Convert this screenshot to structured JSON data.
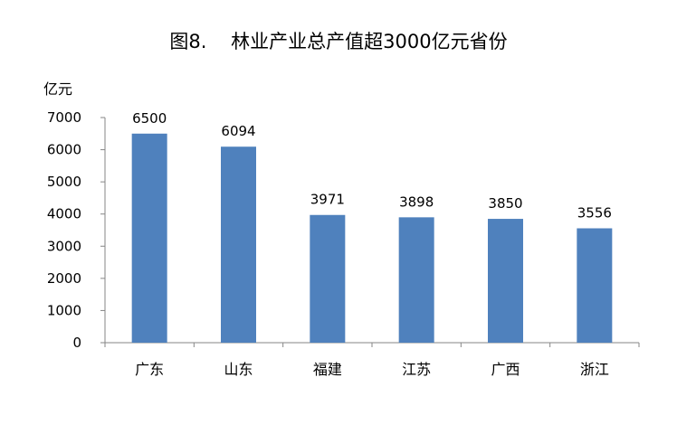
{
  "chart_data": {
    "type": "bar",
    "title": "图8.    林业产业总产值超3000亿元省份",
    "ylabel": "亿元",
    "xlabel": "",
    "categories": [
      "广东",
      "山东",
      "福建",
      "江苏",
      "广西",
      "浙江"
    ],
    "values": [
      6500,
      6094,
      3971,
      3898,
      3850,
      3556
    ],
    "data_labels": [
      "6500",
      "6094",
      "3971",
      "3898",
      "3850",
      "3556"
    ],
    "ylim": [
      0,
      7000
    ],
    "yticks": [
      "0",
      "1000",
      "2000",
      "3000",
      "4000",
      "5000",
      "6000",
      "7000"
    ],
    "bar_color": "#4F81BD",
    "grid": false,
    "legend": "none"
  }
}
